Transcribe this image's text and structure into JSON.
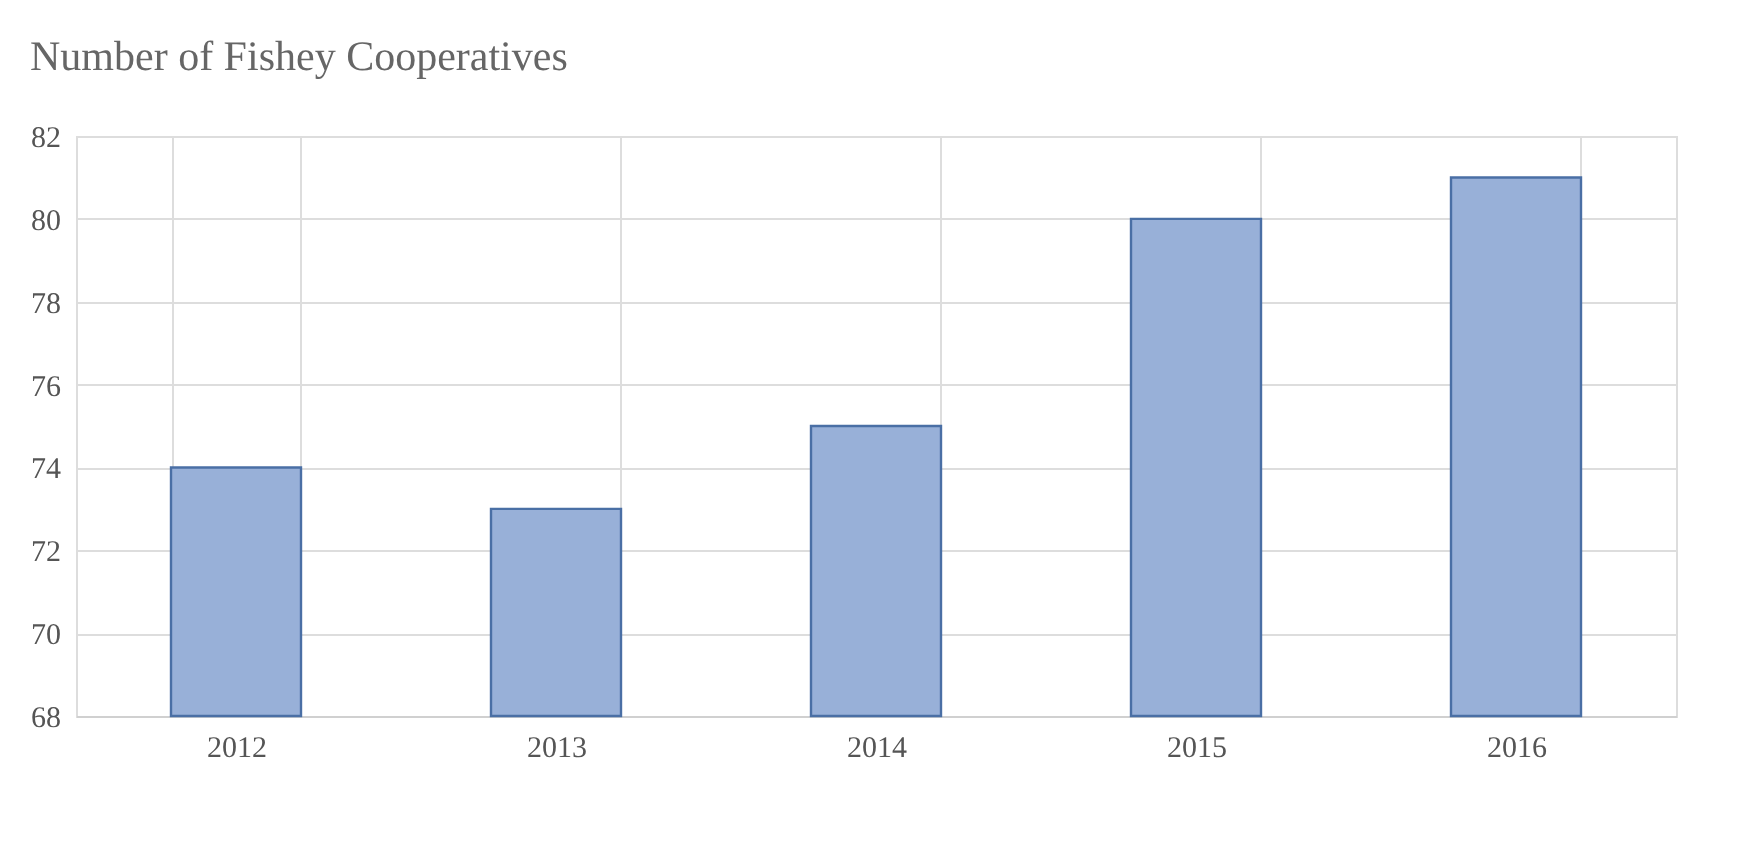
{
  "chart_data": {
    "type": "bar",
    "title": "Number of Fishey Cooperatives",
    "categories": [
      "2012",
      "2013",
      "2014",
      "2015",
      "2016"
    ],
    "values": [
      74,
      73,
      75,
      80,
      81
    ],
    "color": "#98b0d8",
    "ylim": [
      68,
      82
    ],
    "yticks": [
      68,
      70,
      72,
      74,
      76,
      78,
      80,
      82
    ],
    "grid": true
  }
}
